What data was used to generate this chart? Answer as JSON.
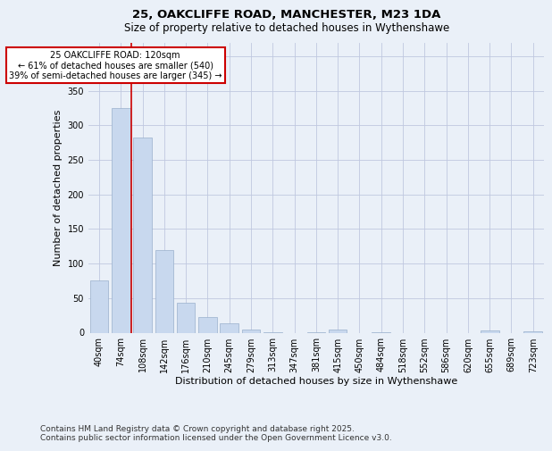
{
  "title_line1": "25, OAKCLIFFE ROAD, MANCHESTER, M23 1DA",
  "title_line2": "Size of property relative to detached houses in Wythenshawe",
  "xlabel": "Distribution of detached houses by size in Wythenshawe",
  "ylabel": "Number of detached properties",
  "categories": [
    "40sqm",
    "74sqm",
    "108sqm",
    "142sqm",
    "176sqm",
    "210sqm",
    "245sqm",
    "279sqm",
    "313sqm",
    "347sqm",
    "381sqm",
    "415sqm",
    "450sqm",
    "484sqm",
    "518sqm",
    "552sqm",
    "586sqm",
    "620sqm",
    "655sqm",
    "689sqm",
    "723sqm"
  ],
  "values": [
    75,
    325,
    283,
    120,
    43,
    23,
    13,
    4,
    1,
    0,
    1,
    5,
    0,
    1,
    0,
    0,
    0,
    0,
    3,
    0,
    2
  ],
  "bar_color": "#c8d8ee",
  "bar_edge_color": "#9ab0cc",
  "redline_x": 1.5,
  "annotation_line1": "25 OAKCLIFFE ROAD: 120sqm",
  "annotation_line2": "← 61% of detached houses are smaller (540)",
  "annotation_line3": "39% of semi-detached houses are larger (345) →",
  "annotation_box_facecolor": "#ffffff",
  "annotation_box_edgecolor": "#cc0000",
  "ylim": [
    0,
    420
  ],
  "yticks": [
    0,
    50,
    100,
    150,
    200,
    250,
    300,
    350,
    400
  ],
  "grid_color": "#c0c8e0",
  "bg_color": "#eaf0f8",
  "footer_line1": "Contains HM Land Registry data © Crown copyright and database right 2025.",
  "footer_line2": "Contains public sector information licensed under the Open Government Licence v3.0.",
  "title_fontsize": 9.5,
  "subtitle_fontsize": 8.5,
  "axis_label_fontsize": 8,
  "tick_fontsize": 7,
  "annotation_fontsize": 7,
  "footer_fontsize": 6.5
}
